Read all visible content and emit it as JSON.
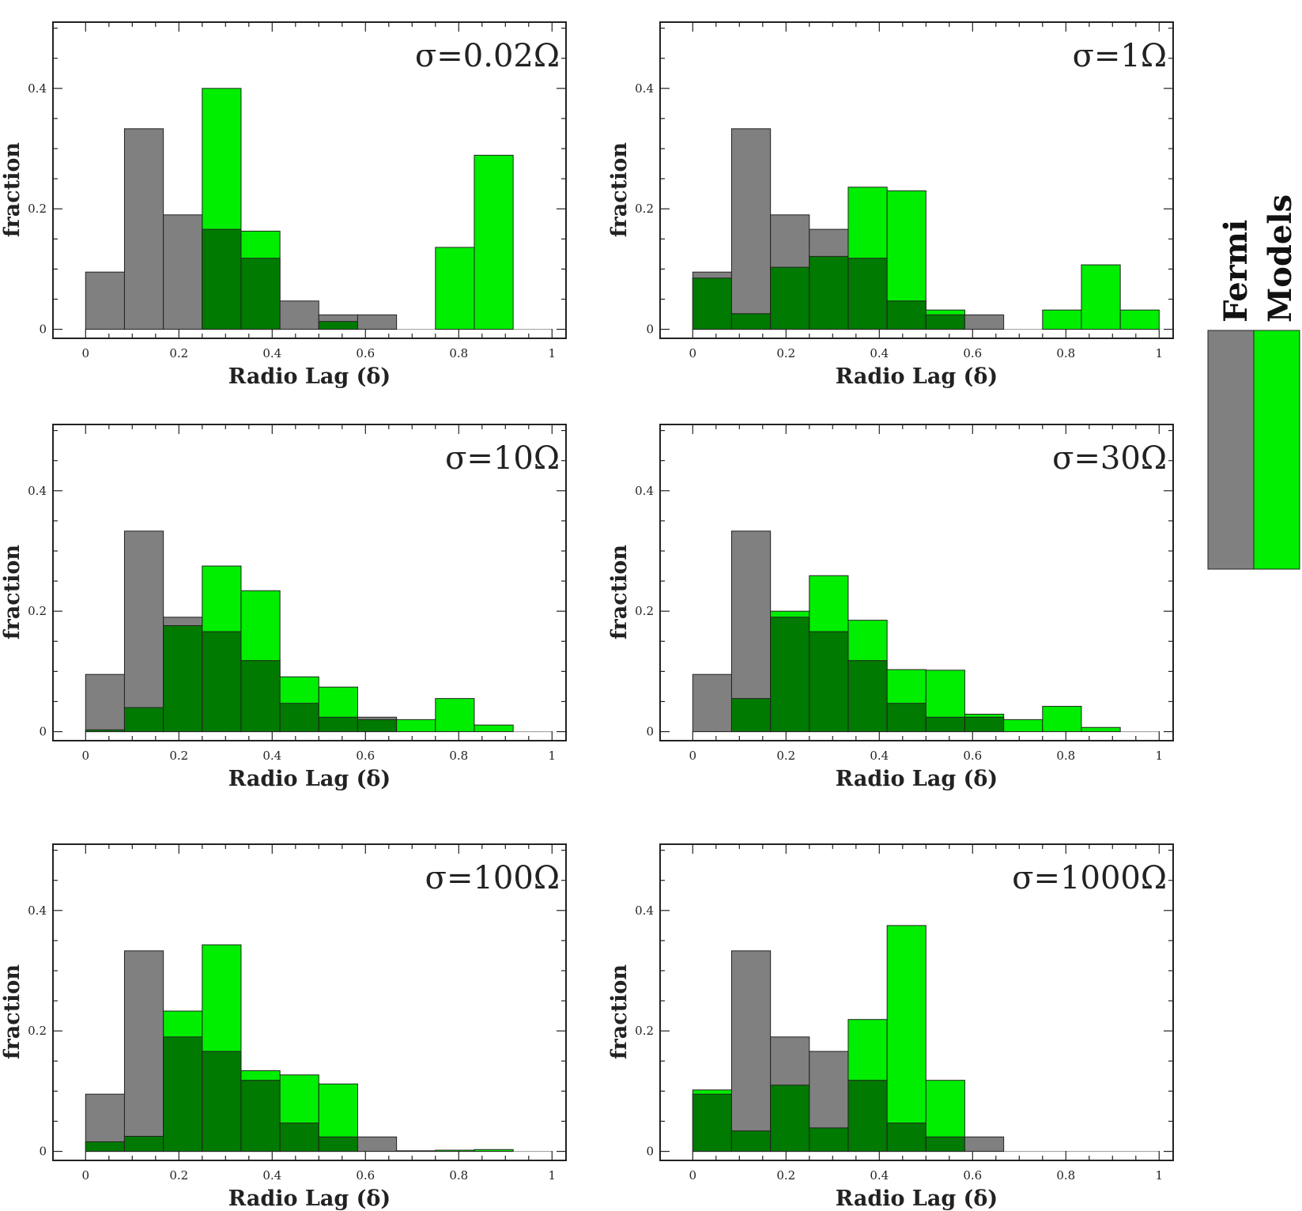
{
  "chart_data": [
    {
      "type": "bar",
      "title": "σ=0.02Ω",
      "xlabel": "Radio Lag (δ)",
      "ylabel": "fraction",
      "xlim": [
        -0.07,
        1.03
      ],
      "ylim": [
        -0.015,
        0.51
      ],
      "xticks": [
        "0",
        "0.2",
        "0.4",
        "0.6",
        "0.8",
        "1"
      ],
      "yticks": [
        "0",
        "0.2",
        "0.4"
      ],
      "bin_edges": [
        0,
        0.0833,
        0.1667,
        0.25,
        0.3333,
        0.4167,
        0.5,
        0.5833,
        0.6667,
        0.75,
        0.8333,
        0.9167,
        1.0
      ],
      "series": [
        {
          "name": "Fermi",
          "values": [
            0.095,
            0.333,
            0.19,
            0.166,
            0.118,
            0.047,
            0.024,
            0.024,
            0,
            0,
            0,
            0
          ]
        },
        {
          "name": "Models",
          "values": [
            0,
            0,
            0,
            0.4,
            0.163,
            0,
            0.013,
            0,
            0,
            0.136,
            0.289,
            0
          ]
        }
      ]
    },
    {
      "type": "bar",
      "title": "σ=1Ω",
      "xlabel": "Radio Lag (δ)",
      "ylabel": "fraction",
      "xlim": [
        -0.07,
        1.03
      ],
      "ylim": [
        -0.015,
        0.51
      ],
      "xticks": [
        "0",
        "0.2",
        "0.4",
        "0.6",
        "0.8",
        "1"
      ],
      "yticks": [
        "0",
        "0.2",
        "0.4"
      ],
      "bin_edges": [
        0,
        0.0833,
        0.1667,
        0.25,
        0.3333,
        0.4167,
        0.5,
        0.5833,
        0.6667,
        0.75,
        0.8333,
        0.9167,
        1.0
      ],
      "series": [
        {
          "name": "Fermi",
          "values": [
            0.095,
            0.333,
            0.19,
            0.166,
            0.118,
            0.047,
            0.024,
            0.024,
            0,
            0,
            0,
            0
          ]
        },
        {
          "name": "Models",
          "values": [
            0.085,
            0.026,
            0.103,
            0.121,
            0.236,
            0.23,
            0.032,
            0,
            0,
            0.032,
            0.107,
            0.032
          ]
        }
      ]
    },
    {
      "type": "bar",
      "title": "σ=10Ω",
      "xlabel": "Radio Lag (δ)",
      "ylabel": "fraction",
      "xlim": [
        -0.07,
        1.03
      ],
      "ylim": [
        -0.015,
        0.51
      ],
      "xticks": [
        "0",
        "0.2",
        "0.4",
        "0.6",
        "0.8",
        "1"
      ],
      "yticks": [
        "0",
        "0.2",
        "0.4"
      ],
      "bin_edges": [
        0,
        0.0833,
        0.1667,
        0.25,
        0.3333,
        0.4167,
        0.5,
        0.5833,
        0.6667,
        0.75,
        0.8333,
        0.9167,
        1.0
      ],
      "series": [
        {
          "name": "Fermi",
          "values": [
            0.095,
            0.333,
            0.19,
            0.166,
            0.118,
            0.047,
            0.024,
            0.024,
            0,
            0,
            0,
            0
          ]
        },
        {
          "name": "Models",
          "values": [
            0.003,
            0.04,
            0.176,
            0.275,
            0.234,
            0.091,
            0.074,
            0.02,
            0.02,
            0.055,
            0.011,
            0
          ]
        }
      ]
    },
    {
      "type": "bar",
      "title": "σ=30Ω",
      "xlabel": "Radio Lag (δ)",
      "ylabel": "fraction",
      "xlim": [
        -0.07,
        1.03
      ],
      "ylim": [
        -0.015,
        0.51
      ],
      "xticks": [
        "0",
        "0.2",
        "0.4",
        "0.6",
        "0.8",
        "1"
      ],
      "yticks": [
        "0",
        "0.2",
        "0.4"
      ],
      "bin_edges": [
        0,
        0.0833,
        0.1667,
        0.25,
        0.3333,
        0.4167,
        0.5,
        0.5833,
        0.6667,
        0.75,
        0.8333,
        0.9167,
        1.0
      ],
      "series": [
        {
          "name": "Fermi",
          "values": [
            0.095,
            0.333,
            0.19,
            0.166,
            0.118,
            0.047,
            0.024,
            0.024,
            0,
            0,
            0,
            0
          ]
        },
        {
          "name": "Models",
          "values": [
            0,
            0.055,
            0.2,
            0.259,
            0.185,
            0.103,
            0.102,
            0.029,
            0.02,
            0.042,
            0.007,
            0
          ]
        }
      ]
    },
    {
      "type": "bar",
      "title": "σ=100Ω",
      "xlabel": "Radio Lag (δ)",
      "ylabel": "fraction",
      "xlim": [
        -0.07,
        1.03
      ],
      "ylim": [
        -0.015,
        0.51
      ],
      "xticks": [
        "0",
        "0.2",
        "0.4",
        "0.6",
        "0.8",
        "1"
      ],
      "yticks": [
        "0",
        "0.2",
        "0.4"
      ],
      "bin_edges": [
        0,
        0.0833,
        0.1667,
        0.25,
        0.3333,
        0.4167,
        0.5,
        0.5833,
        0.6667,
        0.75,
        0.8333,
        0.9167,
        1.0
      ],
      "series": [
        {
          "name": "Fermi",
          "values": [
            0.095,
            0.333,
            0.19,
            0.166,
            0.118,
            0.047,
            0.024,
            0.024,
            0,
            0,
            0,
            0
          ]
        },
        {
          "name": "Models",
          "values": [
            0.016,
            0.025,
            0.233,
            0.343,
            0.134,
            0.127,
            0.112,
            0,
            0.001,
            0.002,
            0.003,
            0
          ]
        }
      ]
    },
    {
      "type": "bar",
      "title": "σ=1000Ω",
      "xlabel": "Radio Lag (δ)",
      "ylabel": "fraction",
      "xlim": [
        -0.07,
        1.03
      ],
      "ylim": [
        -0.015,
        0.51
      ],
      "xticks": [
        "0",
        "0.2",
        "0.4",
        "0.6",
        "0.8",
        "1"
      ],
      "yticks": [
        "0",
        "0.2",
        "0.4"
      ],
      "bin_edges": [
        0,
        0.0833,
        0.1667,
        0.25,
        0.3333,
        0.4167,
        0.5,
        0.5833,
        0.6667,
        0.75,
        0.8333,
        0.9167,
        1.0
      ],
      "series": [
        {
          "name": "Fermi",
          "values": [
            0.095,
            0.333,
            0.19,
            0.166,
            0.118,
            0.047,
            0.024,
            0.024,
            0,
            0,
            0,
            0
          ]
        },
        {
          "name": "Models",
          "values": [
            0.102,
            0.034,
            0.11,
            0.039,
            0.219,
            0.375,
            0.118,
            0,
            0,
            0,
            0,
            0
          ]
        }
      ]
    }
  ],
  "legend": {
    "entries": [
      {
        "name": "Fermi",
        "color": "#808080"
      },
      {
        "name": "Models",
        "color": "#00ee00"
      }
    ]
  },
  "colors": {
    "fermi": "#808080",
    "models": "#00ee00",
    "overlap": "#007a00"
  }
}
